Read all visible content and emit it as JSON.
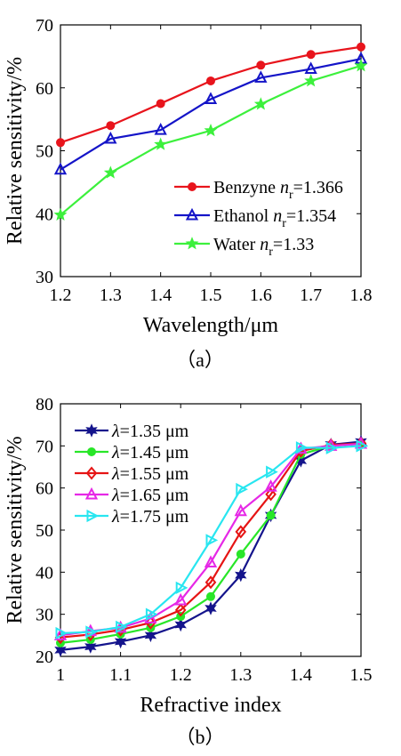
{
  "chart_data": [
    {
      "type": "line",
      "caption": "（a）",
      "xlabel": "Wavelength/μm",
      "ylabel": "Relative sensitivity/%",
      "xlim": [
        1.2,
        1.8
      ],
      "ylim": [
        30,
        70
      ],
      "xticks": [
        "1.2",
        "1.3",
        "1.4",
        "1.5",
        "1.6",
        "1.7",
        "1.8"
      ],
      "yticks": [
        "30",
        "40",
        "50",
        "60",
        "70"
      ],
      "grid": false,
      "legend_position": "bottom-right",
      "x": [
        1.2,
        1.3,
        1.4,
        1.5,
        1.6,
        1.7,
        1.8
      ],
      "series": [
        {
          "name": "Benzyne",
          "nr": "1.366",
          "color": "#e8141c",
          "marker": "circle",
          "values": [
            51.3,
            54.0,
            57.5,
            61.1,
            63.6,
            65.3,
            66.5
          ]
        },
        {
          "name": "Ethanol",
          "nr": "1.354",
          "color": "#1414c8",
          "marker": "triangle-up",
          "values": [
            47.0,
            51.9,
            53.3,
            58.2,
            61.6,
            63.0,
            64.6
          ]
        },
        {
          "name": "Water",
          "nr": "1.33",
          "color": "#3cf03c",
          "marker": "star",
          "values": [
            39.8,
            46.5,
            51.0,
            53.2,
            57.4,
            61.1,
            63.5
          ]
        }
      ]
    },
    {
      "type": "line",
      "caption": "（b）",
      "xlabel": "Refractive index",
      "ylabel": "Relative sensitivity/%",
      "xlim": [
        1.0,
        1.5
      ],
      "ylim": [
        20,
        80
      ],
      "xticks": [
        "1",
        "1.1",
        "1.2",
        "1.3",
        "1.4",
        "1.5"
      ],
      "yticks": [
        "20",
        "30",
        "40",
        "50",
        "60",
        "70",
        "80"
      ],
      "grid": false,
      "legend_position": "top-left",
      "x": [
        1.0,
        1.05,
        1.1,
        1.15,
        1.2,
        1.25,
        1.3,
        1.35,
        1.4,
        1.45,
        1.5
      ],
      "series": [
        {
          "name": "λ=1.35 μm",
          "lambda": "1.35 μm",
          "color": "#14148c",
          "marker": "hexagram",
          "values": [
            21.5,
            22.3,
            23.5,
            25.0,
            27.5,
            31.4,
            39.3,
            53.5,
            66.5,
            70.3,
            71.0
          ]
        },
        {
          "name": "λ=1.45 μm",
          "lambda": "1.45 μm",
          "color": "#28e628",
          "marker": "circle",
          "values": [
            23.2,
            24.0,
            25.3,
            26.8,
            29.5,
            34.2,
            44.3,
            53.5,
            68.0,
            70.0,
            70.5
          ]
        },
        {
          "name": "λ=1.55 μm",
          "lambda": "1.55 μm",
          "color": "#e61414",
          "marker": "diamond",
          "values": [
            24.5,
            25.2,
            26.3,
            28.0,
            31.0,
            37.6,
            49.6,
            58.5,
            68.8,
            70.2,
            70.6
          ]
        },
        {
          "name": "λ=1.65 μm",
          "lambda": "1.65 μm",
          "color": "#e628e6",
          "marker": "triangle-up",
          "values": [
            25.0,
            26.0,
            26.8,
            29.0,
            33.3,
            42.3,
            54.5,
            60.3,
            69.3,
            70.0,
            70.5
          ]
        },
        {
          "name": "λ=1.75 μm",
          "lambda": "1.75 μm",
          "color": "#28e6f0",
          "marker": "triangle-right",
          "values": [
            25.5,
            25.8,
            27.0,
            30.0,
            36.3,
            47.6,
            59.7,
            63.8,
            69.6,
            69.5,
            70.0
          ]
        }
      ]
    }
  ]
}
